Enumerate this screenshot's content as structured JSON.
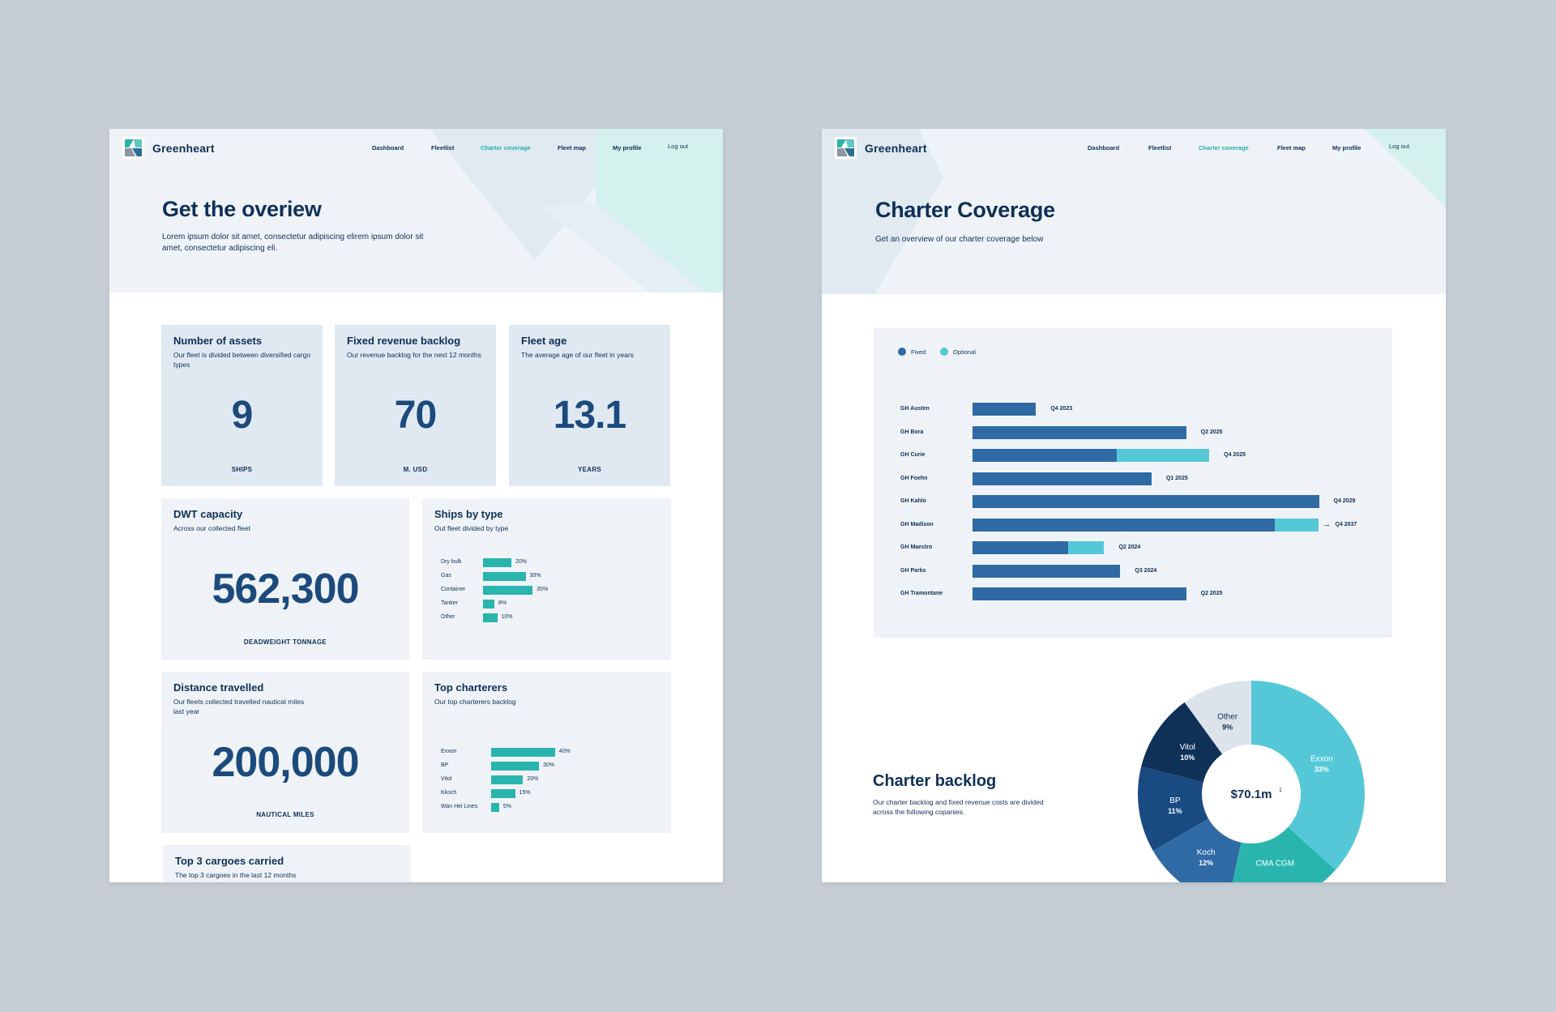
{
  "brand": {
    "name": "Greenheart"
  },
  "nav": {
    "items": [
      "Dashboard",
      "Fleetlist",
      "Charter coverage",
      "Fleet map",
      "My profile",
      "Log out"
    ],
    "active": "Charter coverage"
  },
  "colors": {
    "navy": "#0f3057",
    "bar_navy": "#2f6aa5",
    "teal": "#29b5ae",
    "optional": "#55c8d8",
    "card_blue": "#e0e9f2",
    "card_light": "#eff3f7"
  },
  "overview": {
    "title": "Get the overiew",
    "subtitle": "Lorem ipsum dolor sit amet, consectetur adipiscing elirem ipsum dolor sit amet, consectetur adipiscing eli.",
    "cards": {
      "assets": {
        "title": "Number of assets",
        "sub": "Our fleet is divided between diversified cargo types",
        "value": "9",
        "unit": "SHIPS"
      },
      "backlog": {
        "title": "Fixed revenue backlog",
        "sub": "Our revenue backlog for the next 12 months",
        "value": "70",
        "unit": "M. USD"
      },
      "age": {
        "title": "Fleet age",
        "sub": "The average age of our fleet in years",
        "value": "13.1",
        "unit": "YEARS"
      },
      "dwt": {
        "title": "DWT capacity",
        "sub": "Across our collected fleet",
        "value": "562,300",
        "unit": "DEADWEIGHT TONNAGE"
      },
      "distance": {
        "title": "Distance travelled",
        "sub": "Our fleets collected travelled nautical miles last year",
        "value": "200,000",
        "unit": "NAUTICAL MILES"
      },
      "top3": {
        "title": "Top 3 cargoes carried",
        "sub": "The top 3 cargoes in the last 12 months"
      }
    },
    "ships_by_type": {
      "title": "Ships by type",
      "sub": "Out fleet divided by type",
      "rows": [
        {
          "label": "Dry bulk",
          "pct_text": "20%",
          "value": 20
        },
        {
          "label": "Gas",
          "pct_text": "30%",
          "value": 30
        },
        {
          "label": "Container",
          "pct_text": "35%",
          "value": 35
        },
        {
          "label": "Tanker",
          "pct_text": "8%",
          "value": 8
        },
        {
          "label": "Other",
          "pct_text": "10%",
          "value": 10
        }
      ]
    },
    "top_charterers": {
      "title": "Top charterers",
      "sub": "Our top charterers backlog",
      "rows": [
        {
          "label": "Exxon",
          "pct_text": "40%",
          "value": 40
        },
        {
          "label": "BP",
          "pct_text": "30%",
          "value": 30
        },
        {
          "label": "Vitol",
          "pct_text": "20%",
          "value": 20
        },
        {
          "label": "Kkoch",
          "pct_text": "15%",
          "value": 15
        },
        {
          "label": "Wan Hei Lines",
          "pct_text": "5%",
          "value": 5
        }
      ]
    }
  },
  "coverage": {
    "title": "Charter Coverage",
    "subtitle": "Get an overview of our charter coverage below",
    "legend": {
      "fixed": "Fixed",
      "optional": "Optional"
    },
    "backlog_title": "Charter backlog",
    "backlog_sub": "Our charter backlog and fixed revenue costs are divided across the following copanies.",
    "total": "$70.1m",
    "total_note": "1"
  },
  "chart_data": [
    {
      "type": "bar",
      "title": "Ships by type",
      "categories": [
        "Dry bulk",
        "Gas",
        "Container",
        "Tanker",
        "Other"
      ],
      "values": [
        20,
        30,
        35,
        8,
        10
      ]
    },
    {
      "type": "bar",
      "title": "Top charterers",
      "categories": [
        "Exxon",
        "BP",
        "Vitol",
        "Kkoch",
        "Wan Hei Lines"
      ],
      "values": [
        40,
        30,
        20,
        15,
        5
      ]
    },
    {
      "type": "bar",
      "title": "",
      "orientation": "horizontal-stacked",
      "x_start_quarter": "",
      "series_names": [
        "Fixed",
        "Optional"
      ],
      "rows": [
        {
          "ship": "GH Austen",
          "fixed": 5.5,
          "optional": 0,
          "end": "Q4 2023",
          "arrow": false
        },
        {
          "ship": "GH Bora",
          "fixed": 18.5,
          "optional": 0,
          "end": "Q2 2025",
          "arrow": false
        },
        {
          "ship": "GH Curie",
          "fixed": 12.5,
          "optional": 8,
          "end": "Q4 2025",
          "arrow": false
        },
        {
          "ship": "GH Foehn",
          "fixed": 15.5,
          "optional": 0,
          "end": "Q1 2025",
          "arrow": false
        },
        {
          "ship": "GH Kahlo",
          "fixed": 30,
          "optional": 0,
          "end": "Q4 2029",
          "arrow": false
        },
        {
          "ship": "GH Madison",
          "fixed": 26.2,
          "optional": 3.8,
          "end": "Q4 2037",
          "arrow": true
        },
        {
          "ship": "GH Maestro",
          "fixed": 8.3,
          "optional": 3.1,
          "end": "Q2 2024",
          "arrow": false
        },
        {
          "ship": "GH Parks",
          "fixed": 12.8,
          "optional": 0,
          "end": "Q3 2024",
          "arrow": false
        },
        {
          "ship": "GH Tramontane",
          "fixed": 18.5,
          "optional": 0,
          "end": "Q2 2025",
          "arrow": false
        }
      ],
      "xlim": [
        0,
        30
      ]
    },
    {
      "type": "pie",
      "title": "Charter backlog",
      "center_label": "$70.1m",
      "slices": [
        {
          "label": "Exxon",
          "pct_text": "33%",
          "value": 33,
          "color": "#55c8d8"
        },
        {
          "label": "CMA CGM",
          "pct_text": "",
          "value": 15,
          "color": "#29b5ae"
        },
        {
          "label": "Koch",
          "pct_text": "12%",
          "value": 12,
          "color": "#2f6aa5"
        },
        {
          "label": "BP",
          "pct_text": "11%",
          "value": 11,
          "color": "#1a4a82"
        },
        {
          "label": "Vitol",
          "pct_text": "10%",
          "value": 10,
          "color": "#0f3057"
        },
        {
          "label": "Other",
          "pct_text": "9%",
          "value": 9,
          "color": "#dde3ea"
        }
      ]
    }
  ]
}
